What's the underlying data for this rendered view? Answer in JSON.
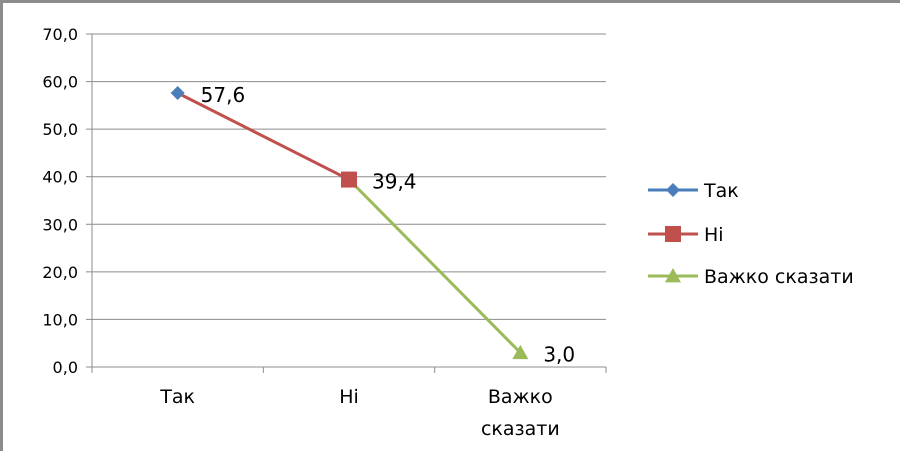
{
  "chart_data": {
    "type": "line",
    "categories": [
      "Так",
      "Ні",
      "Важко сказати"
    ],
    "category_lines": [
      [
        "Так"
      ],
      [
        "Ні"
      ],
      [
        "Важко",
        "сказати"
      ]
    ],
    "values": [
      57.6,
      39.4,
      3.0
    ],
    "data_labels": [
      "57,6",
      "39,4",
      "3,0"
    ],
    "y_ticks": [
      "0,0",
      "10,0",
      "20,0",
      "30,0",
      "40,0",
      "50,0",
      "60,0",
      "70,0"
    ],
    "ylim": [
      0,
      70
    ],
    "grid": true,
    "legend_position": "right",
    "series": [
      {
        "name": "Так",
        "color": "#4a7ebb",
        "marker": "diamond"
      },
      {
        "name": "Ні",
        "color": "#c0504d",
        "marker": "square"
      },
      {
        "name": "Важко сказати",
        "color": "#9bbb59",
        "marker": "triangle"
      }
    ]
  }
}
